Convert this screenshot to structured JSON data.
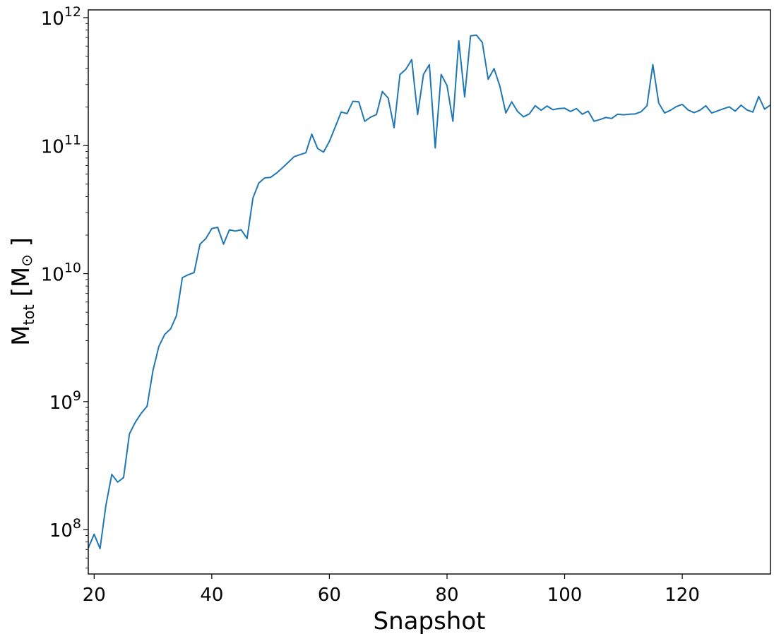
{
  "chart_data": {
    "type": "line",
    "title": "",
    "xlabel": "Snapshot",
    "ylabel": {
      "main": "M",
      "sub": "tot",
      "unit_open": " [M",
      "unit_symbol": "⊙",
      "unit_close": " ]"
    },
    "xlim": [
      19,
      135
    ],
    "ylim": [
      45000000.0,
      1150000000000.0
    ],
    "yscale": "log",
    "grid": false,
    "legend": "none",
    "x_ticks": [
      20,
      40,
      60,
      80,
      100,
      120
    ],
    "y_ticks": [
      {
        "value": 100000000.0,
        "base": "10",
        "exp": "8"
      },
      {
        "value": 1000000000.0,
        "base": "10",
        "exp": "9"
      },
      {
        "value": 10000000000.0,
        "base": "10",
        "exp": "10"
      },
      {
        "value": 100000000000.0,
        "base": "10",
        "exp": "11"
      },
      {
        "value": 1000000000000.0,
        "base": "10",
        "exp": "12"
      }
    ],
    "series": [
      {
        "color": "#1f77b4",
        "x": [
          19,
          20,
          21,
          22,
          23,
          24,
          25,
          26,
          27,
          28,
          29,
          30,
          31,
          32,
          33,
          34,
          35,
          36,
          37,
          38,
          39,
          40,
          41,
          42,
          43,
          44,
          45,
          46,
          47,
          48,
          49,
          50,
          51,
          52,
          53,
          54,
          55,
          56,
          57,
          58,
          59,
          60,
          61,
          62,
          63,
          64,
          65,
          66,
          67,
          68,
          69,
          70,
          71,
          72,
          73,
          74,
          75,
          76,
          77,
          78,
          79,
          80,
          81,
          82,
          83,
          84,
          85,
          86,
          87,
          88,
          89,
          90,
          91,
          92,
          93,
          94,
          95,
          96,
          97,
          98,
          99,
          100,
          101,
          102,
          103,
          104,
          105,
          106,
          107,
          108,
          109,
          110,
          111,
          112,
          113,
          114,
          115,
          116,
          117,
          118,
          119,
          120,
          121,
          122,
          123,
          124,
          125,
          126,
          127,
          128,
          129,
          130,
          131,
          132,
          133,
          134,
          135
        ],
        "y": [
          72000000.0,
          92000000.0,
          71000000.0,
          155000000.0,
          270000000.0,
          235000000.0,
          255000000.0,
          560000000.0,
          690000000.0,
          810000000.0,
          920000000.0,
          1750000000.0,
          2700000000.0,
          3350000000.0,
          3700000000.0,
          4700000000.0,
          9300000000.0,
          9800000000.0,
          10200000000.0,
          17000000000.0,
          18800000000.0,
          22500000000.0,
          23000000000.0,
          17000000000.0,
          22000000000.0,
          21500000000.0,
          22000000000.0,
          18800000000.0,
          39000000000.0,
          51000000000.0,
          56000000000.0,
          56500000000.0,
          61000000000.0,
          67000000000.0,
          74000000000.0,
          82000000000.0,
          85000000000.0,
          88000000000.0,
          123000000000.0,
          95000000000.0,
          89000000000.0,
          108000000000.0,
          140000000000.0,
          183000000000.0,
          178000000000.0,
          222000000000.0,
          220000000000.0,
          155000000000.0,
          167000000000.0,
          175000000000.0,
          265000000000.0,
          235000000000.0,
          138000000000.0,
          360000000000.0,
          395000000000.0,
          470000000000.0,
          175000000000.0,
          360000000000.0,
          430000000000.0,
          96000000000.0,
          360000000000.0,
          295000000000.0,
          155000000000.0,
          660000000000.0,
          240000000000.0,
          720000000000.0,
          730000000000.0,
          640000000000.0,
          330000000000.0,
          400000000000.0,
          290000000000.0,
          180000000000.0,
          220000000000.0,
          185000000000.0,
          168000000000.0,
          177000000000.0,
          205000000000.0,
          189000000000.0,
          204000000000.0,
          191000000000.0,
          195000000000.0,
          196000000000.0,
          185000000000.0,
          195000000000.0,
          176000000000.0,
          186000000000.0,
          155000000000.0,
          160000000000.0,
          166000000000.0,
          163000000000.0,
          176000000000.0,
          174000000000.0,
          176000000000.0,
          177000000000.0,
          184000000000.0,
          205000000000.0,
          430000000000.0,
          215000000000.0,
          180000000000.0,
          189000000000.0,
          202000000000.0,
          210000000000.0,
          190000000000.0,
          181000000000.0,
          189000000000.0,
          205000000000.0,
          180000000000.0,
          187000000000.0,
          194000000000.0,
          201000000000.0,
          186000000000.0,
          207000000000.0,
          190000000000.0,
          183000000000.0,
          242000000000.0,
          193000000000.0,
          208000000000.0
        ]
      }
    ]
  }
}
